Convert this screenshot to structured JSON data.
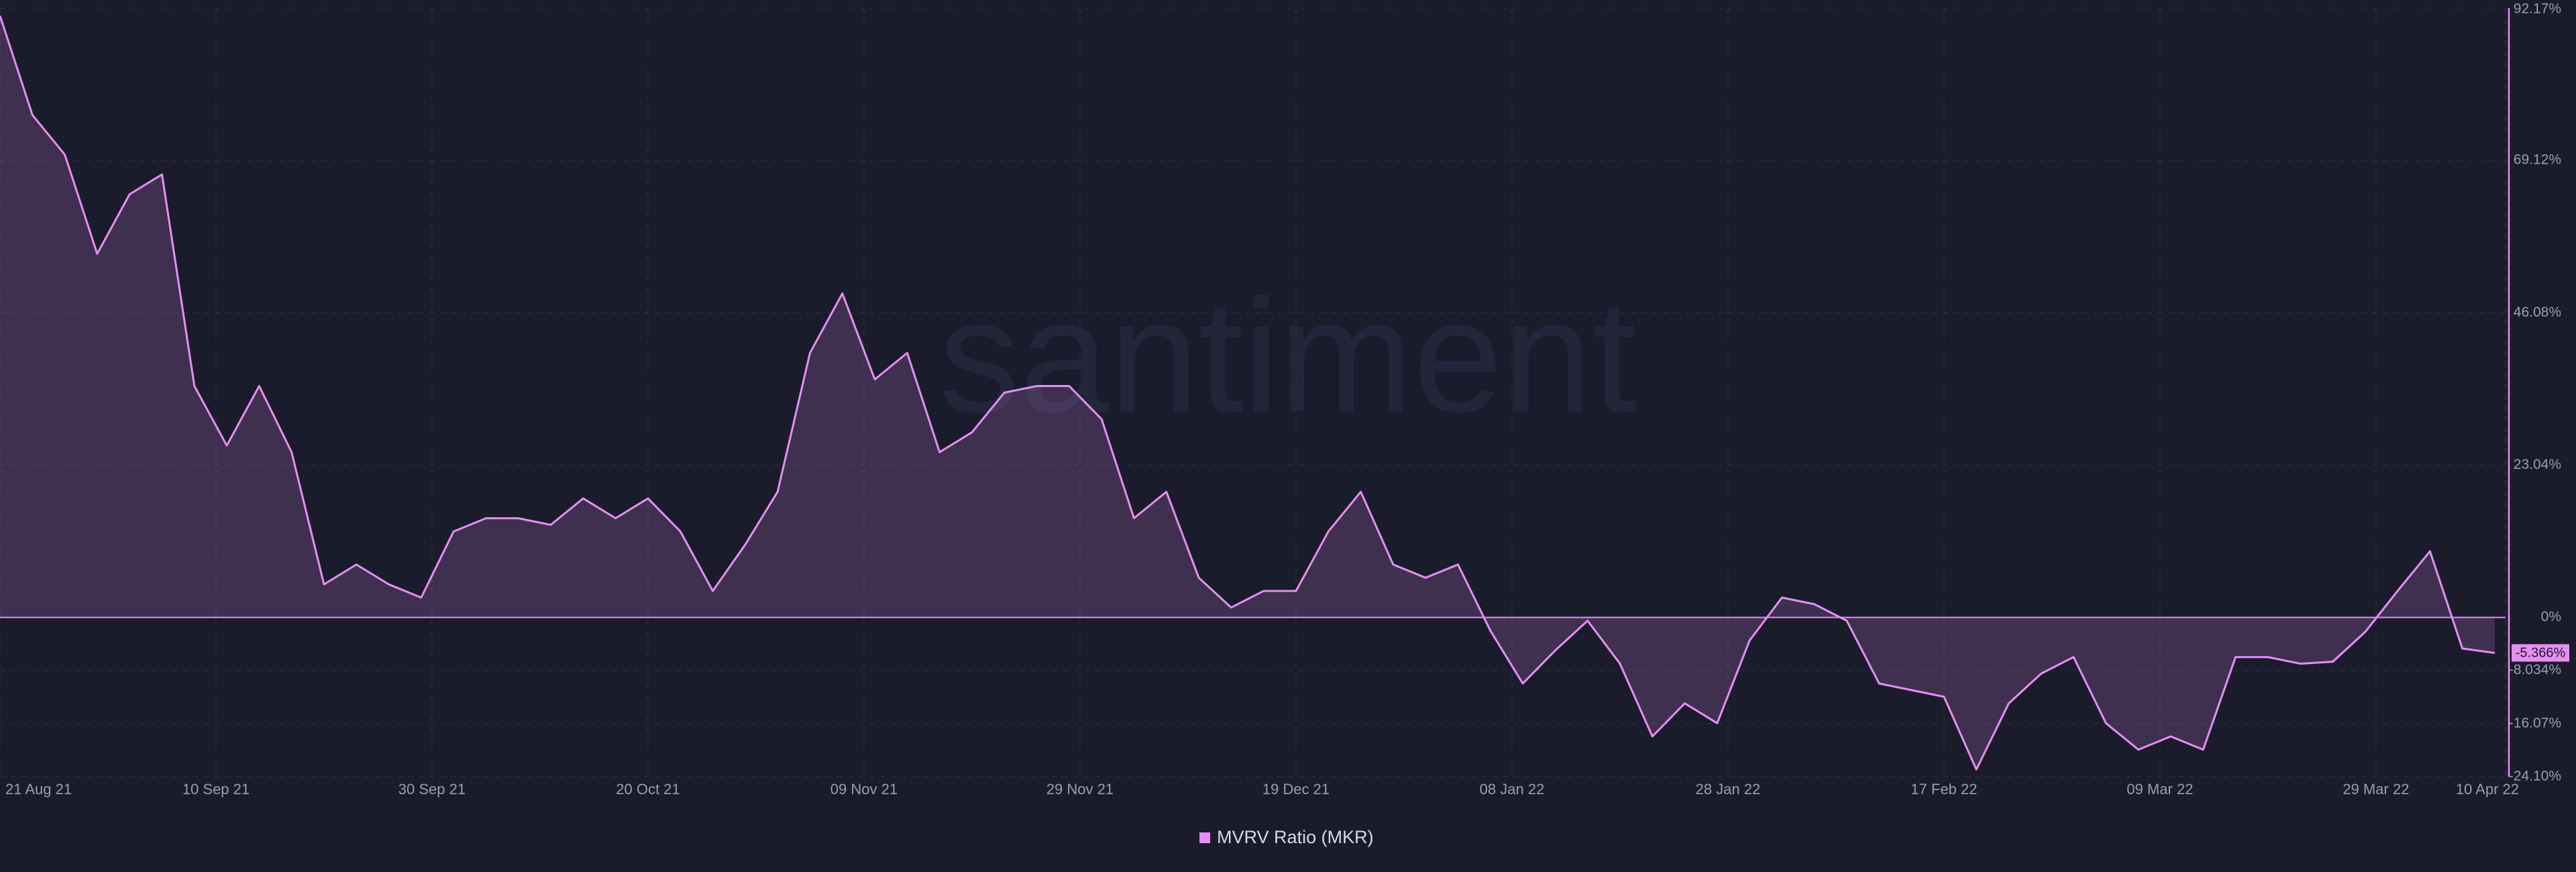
{
  "chart_data": {
    "type": "area-line",
    "series": [
      {
        "name": "MVRV Ratio (MKR)",
        "color": "#e58ff2",
        "values": [
          91,
          76,
          70,
          55,
          64,
          67,
          35,
          26,
          35,
          25,
          5,
          8,
          5,
          3,
          13,
          15,
          15,
          14,
          18,
          15,
          18,
          13,
          4,
          11,
          19,
          40,
          49,
          36,
          40,
          25,
          28,
          34,
          35,
          35,
          30,
          15,
          19,
          6,
          1.5,
          4,
          4,
          13,
          19,
          8,
          6,
          8,
          -2,
          -10,
          -5,
          -0.5,
          -7,
          -18,
          -13,
          -16,
          -3.5,
          3,
          2,
          -0.5,
          -10,
          -11,
          -12,
          -23,
          -13,
          -8.5,
          -6,
          -16,
          -20,
          -18,
          -20,
          -6,
          -6,
          -7,
          -6.7,
          -2.2,
          4,
          10,
          -4.7,
          -5.366
        ]
      }
    ],
    "x": [
      "2021-08-21",
      "2021-08-24",
      "2021-08-27",
      "2021-08-30",
      "2021-09-02",
      "2021-09-05",
      "2021-09-08",
      "2021-09-11",
      "2021-09-14",
      "2021-09-17",
      "2021-09-20",
      "2021-09-23",
      "2021-09-26",
      "2021-09-29",
      "2021-10-02",
      "2021-10-05",
      "2021-10-08",
      "2021-10-11",
      "2021-10-14",
      "2021-10-17",
      "2021-10-20",
      "2021-10-23",
      "2021-10-26",
      "2021-10-29",
      "2021-11-01",
      "2021-11-04",
      "2021-11-07",
      "2021-11-10",
      "2021-11-13",
      "2021-11-16",
      "2021-11-19",
      "2021-11-22",
      "2021-11-25",
      "2021-11-28",
      "2021-12-01",
      "2021-12-04",
      "2021-12-07",
      "2021-12-10",
      "2021-12-13",
      "2021-12-16",
      "2021-12-19",
      "2021-12-22",
      "2021-12-25",
      "2021-12-28",
      "2021-12-31",
      "2022-01-03",
      "2022-01-06",
      "2022-01-09",
      "2022-01-12",
      "2022-01-15",
      "2022-01-18",
      "2022-01-21",
      "2022-01-24",
      "2022-01-27",
      "2022-01-30",
      "2022-02-02",
      "2022-02-05",
      "2022-02-08",
      "2022-02-11",
      "2022-02-14",
      "2022-02-17",
      "2022-02-20",
      "2022-02-23",
      "2022-02-26",
      "2022-03-01",
      "2022-03-04",
      "2022-03-07",
      "2022-03-10",
      "2022-03-13",
      "2022-03-16",
      "2022-03-19",
      "2022-03-22",
      "2022-03-25",
      "2022-03-28",
      "2022-03-31",
      "2022-04-03",
      "2022-04-06",
      "2022-04-09"
    ],
    "xlim": [
      "2021-08-21",
      "2022-04-10"
    ],
    "xticks": [
      {
        "value": "2021-08-21",
        "label": "21 Aug 21"
      },
      {
        "value": "2021-09-10",
        "label": "10 Sep 21"
      },
      {
        "value": "2021-09-30",
        "label": "30 Sep 21"
      },
      {
        "value": "2021-10-20",
        "label": "20 Oct 21"
      },
      {
        "value": "2021-11-09",
        "label": "09 Nov 21"
      },
      {
        "value": "2021-11-29",
        "label": "29 Nov 21"
      },
      {
        "value": "2021-12-19",
        "label": "19 Dec 21"
      },
      {
        "value": "2022-01-08",
        "label": "08 Jan 22"
      },
      {
        "value": "2022-01-28",
        "label": "28 Jan 22"
      },
      {
        "value": "2022-02-17",
        "label": "17 Feb 22"
      },
      {
        "value": "2022-03-09",
        "label": "09 Mar 22"
      },
      {
        "value": "2022-03-29",
        "label": "29 Mar 22"
      },
      {
        "value": "2022-04-10",
        "label": "10 Apr 22"
      }
    ],
    "ylim": [
      -24.1,
      92.17
    ],
    "yticks": [
      {
        "value": 92.17,
        "label": "92.17%"
      },
      {
        "value": 69.12,
        "label": "69.12%"
      },
      {
        "value": 46.08,
        "label": "46.08%"
      },
      {
        "value": 23.04,
        "label": "23.04%"
      },
      {
        "value": 0,
        "label": "0%"
      },
      {
        "value": -8.034,
        "label": "-8.034%"
      },
      {
        "value": -16.07,
        "label": "-16.07%"
      },
      {
        "value": -24.1,
        "label": "-24.10%"
      }
    ],
    "current_label": "-5.366%",
    "watermark": "santiment",
    "grid": true
  }
}
